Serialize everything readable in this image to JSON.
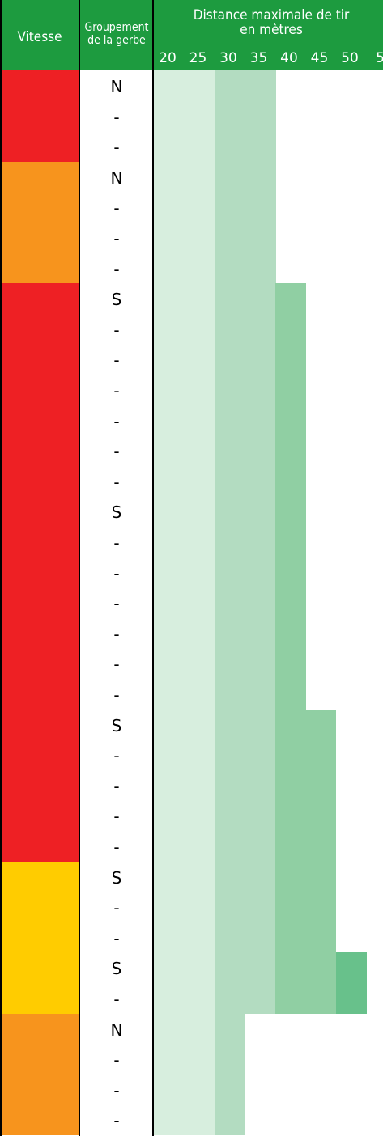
{
  "header": {
    "col_speed": "Vitesse",
    "col_group_line1": "Groupement",
    "col_group_line2": "de la gerbe",
    "distance_line1": "Distance maximale de tir",
    "distance_line2": "en mètres"
  },
  "colors": {
    "header_green": "#1d9b3f",
    "red": "#ee2024",
    "orange": "#f7941d",
    "yellow": "#ffcc00",
    "band_1": "#d7eede",
    "band_2": "#b3dcc1",
    "band_3": "#90cfa3",
    "band_4": "#68c18b"
  },
  "chart_data": {
    "type": "table",
    "x_ticks": [
      "20",
      "25",
      "30",
      "35",
      "40",
      "45",
      "50",
      "5"
    ],
    "rows": [
      {
        "group": "N",
        "speed": "red",
        "max_distance": 35
      },
      {
        "group": "-",
        "speed": "red",
        "max_distance": 35
      },
      {
        "group": "-",
        "speed": "red",
        "max_distance": 35
      },
      {
        "group": "N",
        "speed": "orange",
        "max_distance": 35
      },
      {
        "group": "-",
        "speed": "orange",
        "max_distance": 35
      },
      {
        "group": "-",
        "speed": "orange",
        "max_distance": 35
      },
      {
        "group": "-",
        "speed": "orange",
        "max_distance": 35
      },
      {
        "group": "S",
        "speed": "red",
        "max_distance": 40
      },
      {
        "group": "-",
        "speed": "red",
        "max_distance": 40
      },
      {
        "group": "-",
        "speed": "red",
        "max_distance": 40
      },
      {
        "group": "-",
        "speed": "red",
        "max_distance": 40
      },
      {
        "group": "-",
        "speed": "red",
        "max_distance": 40
      },
      {
        "group": "-",
        "speed": "red",
        "max_distance": 40
      },
      {
        "group": "-",
        "speed": "red",
        "max_distance": 40
      },
      {
        "group": "S",
        "speed": "red",
        "max_distance": 40
      },
      {
        "group": "-",
        "speed": "red",
        "max_distance": 40
      },
      {
        "group": "-",
        "speed": "red",
        "max_distance": 40
      },
      {
        "group": "-",
        "speed": "red",
        "max_distance": 40
      },
      {
        "group": "-",
        "speed": "red",
        "max_distance": 40
      },
      {
        "group": "-",
        "speed": "red",
        "max_distance": 40
      },
      {
        "group": "-",
        "speed": "red",
        "max_distance": 40
      },
      {
        "group": "S",
        "speed": "red",
        "max_distance": 45
      },
      {
        "group": "-",
        "speed": "red",
        "max_distance": 45
      },
      {
        "group": "-",
        "speed": "red",
        "max_distance": 45
      },
      {
        "group": "-",
        "speed": "red",
        "max_distance": 45
      },
      {
        "group": "-",
        "speed": "red",
        "max_distance": 45
      },
      {
        "group": "S",
        "speed": "yellow",
        "max_distance": 45
      },
      {
        "group": "-",
        "speed": "yellow",
        "max_distance": 45
      },
      {
        "group": "-",
        "speed": "yellow",
        "max_distance": 45
      },
      {
        "group": "S",
        "speed": "yellow",
        "max_distance": 50
      },
      {
        "group": "-",
        "speed": "yellow",
        "max_distance": 50
      },
      {
        "group": "N",
        "speed": "orange",
        "max_distance": 30
      },
      {
        "group": "-",
        "speed": "orange",
        "max_distance": 30
      },
      {
        "group": "-",
        "speed": "orange",
        "max_distance": 30
      },
      {
        "group": "-",
        "speed": "orange",
        "max_distance": 30
      }
    ]
  }
}
